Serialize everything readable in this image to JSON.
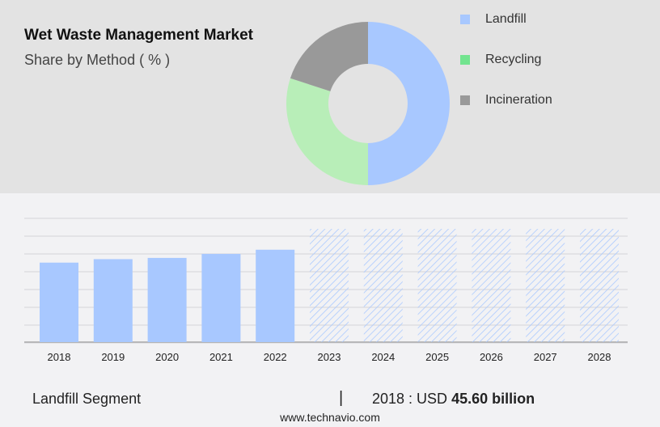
{
  "header": {
    "title": "Wet Waste Management Market",
    "subtitle": "Share by Method ( % )"
  },
  "chart_data": [
    {
      "type": "pie",
      "variant": "donut",
      "title": "Wet Waste Management Market",
      "subtitle": "Share by Method ( % )",
      "legend_position": "right",
      "slices": [
        {
          "name": "Landfill",
          "value": 50,
          "color": "#a8c8ff"
        },
        {
          "name": "Recycling",
          "value": 30,
          "color": "#b8eeb8"
        },
        {
          "name": "Incineration",
          "value": 20,
          "color": "#999999"
        }
      ],
      "legend_colors": [
        "#a8c8ff",
        "#72e48f",
        "#999999"
      ]
    },
    {
      "type": "bar",
      "categories": [
        "2018",
        "2019",
        "2020",
        "2021",
        "2022",
        "2023",
        "2024",
        "2025",
        "2026",
        "2027",
        "2028"
      ],
      "values": [
        45.6,
        47.6,
        48.3,
        50.6,
        53.0,
        null,
        null,
        null,
        null,
        null,
        null
      ],
      "forecast_from": "2023",
      "bar_color": "#a8c8ff",
      "grid": true,
      "ylim": [
        0,
        71
      ]
    }
  ],
  "footer": {
    "segment": "Landfill Segment",
    "separator": "|",
    "year_label": "2018 : USD",
    "value": "45.60 billion",
    "site": "www.technavio.com"
  }
}
